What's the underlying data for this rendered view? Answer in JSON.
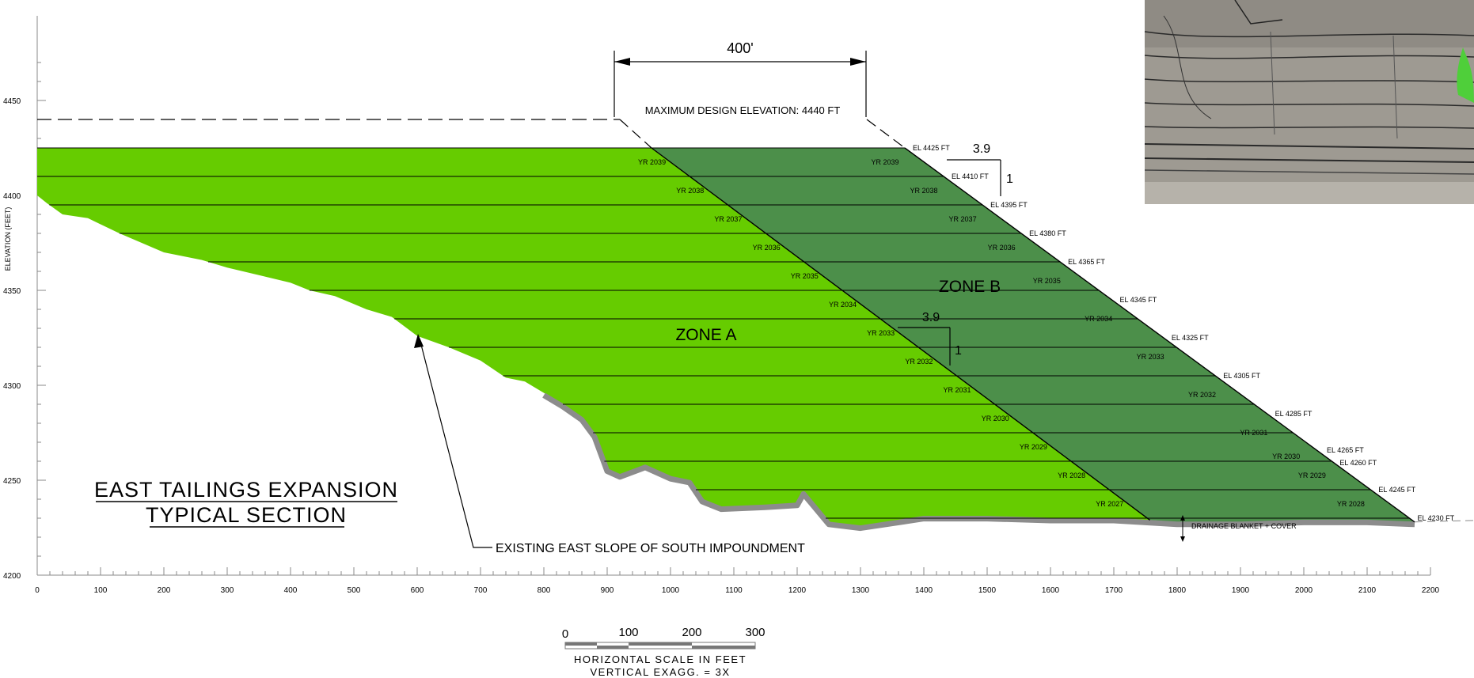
{
  "axes": {
    "ylabel": "ELEVATION (FEET)",
    "x_ticks": [
      0,
      100,
      200,
      300,
      400,
      500,
      600,
      700,
      800,
      900,
      1000,
      1100,
      1200,
      1300,
      1400,
      1500,
      1600,
      1700,
      1800,
      1900,
      2000,
      2100,
      2200
    ],
    "y_ticks": [
      4200,
      4250,
      4300,
      4350,
      4400,
      4450
    ]
  },
  "title": {
    "line1": "EAST TAILINGS EXPANSION",
    "line2": "TYPICAL SECTION"
  },
  "max_design": {
    "label": "MAXIMUM DESIGN ELEVATION: 4440 FT",
    "dimension": "400'",
    "elevation": 4440
  },
  "zones": {
    "a": "ZONE A",
    "b": "ZONE B"
  },
  "slopes": {
    "run": "3.9",
    "rise": "1"
  },
  "callouts": {
    "existing_slope": "EXISTING EAST SLOPE OF SOUTH IMPOUNDMENT",
    "drainage": "DRAINAGE BLANKET + COVER"
  },
  "lift_elevations": [
    4425,
    4410,
    4395,
    4380,
    4365,
    4350,
    4335,
    4320,
    4305,
    4290,
    4275,
    4260,
    4245,
    4230
  ],
  "zone_a_years": [
    "YR 2039",
    "YR 2038",
    "YR 2037",
    "YR 2036",
    "YR 2035",
    "YR 2034",
    "YR 2033",
    "YR 2032",
    "YR 2031",
    "YR 2030",
    "YR 2029",
    "YR 2028",
    "YR 2027"
  ],
  "zone_b_years": [
    "YR 2039",
    "YR 2038",
    "YR 2037",
    "YR 2036",
    "YR 2035",
    "YR 2034",
    "YR 2033",
    "YR 2032",
    "YR 2031",
    "YR 2030",
    "YR 2029",
    "YR 2028"
  ],
  "el_labels": [
    {
      "text": "EL 4425 FT",
      "elev": 4425
    },
    {
      "text": "EL 4410 FT",
      "elev": 4410
    },
    {
      "text": "EL 4395 FT",
      "elev": 4395
    },
    {
      "text": "EL 4380 FT",
      "elev": 4380
    },
    {
      "text": "EL 4365 FT",
      "elev": 4365
    },
    {
      "text": "EL 4345 FT",
      "elev": 4345
    },
    {
      "text": "EL 4325 FT",
      "elev": 4325
    },
    {
      "text": "EL 4305 FT",
      "elev": 4305
    },
    {
      "text": "EL 4285 FT",
      "elev": 4285
    },
    {
      "text": "EL 4265 FT",
      "elev": 4265
    },
    {
      "text": "EL 4260 FT",
      "elev": 4260
    },
    {
      "text": "EL 4245 FT",
      "elev": 4245
    },
    {
      "text": "EL 4230 FT",
      "elev": 4230
    }
  ],
  "scale_bar": {
    "ticks": [
      "0",
      "100",
      "200",
      "300"
    ],
    "caption1": "HORIZONTAL SCALE IN FEET",
    "caption2": "VERTICAL EXAGG. = 3X"
  },
  "colors": {
    "zone_a": "#66cc00",
    "zone_b": "#4c8f4a",
    "ground": "#8c8c8c",
    "line": "#000000",
    "grey_text": "#9a9a9a"
  }
}
